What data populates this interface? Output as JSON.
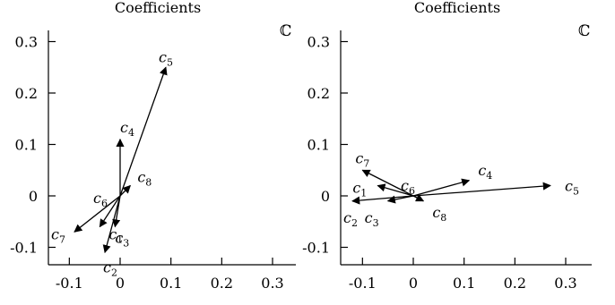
{
  "chart_data": [
    {
      "type": "vector-plot",
      "title": "Coefficients",
      "plane_symbol": "ℂ",
      "xlim": [
        -0.13,
        0.32
      ],
      "ylim": [
        -0.14,
        0.32
      ],
      "xticks": [
        "-0.1",
        "0",
        "0.1",
        "0.2",
        "0.3"
      ],
      "yticks": [
        "0.3",
        "0.2",
        "0.1",
        "0",
        "-0.1"
      ],
      "vectors": [
        {
          "base": "c",
          "sub": "1",
          "x": -0.04,
          "y": -0.06
        },
        {
          "base": "c",
          "sub": "2",
          "x": -0.03,
          "y": -0.11
        },
        {
          "base": "c",
          "sub": "3",
          "x": -0.01,
          "y": -0.06
        },
        {
          "base": "c",
          "sub": "4",
          "x": 0.0,
          "y": 0.11
        },
        {
          "base": "c",
          "sub": "5",
          "x": 0.09,
          "y": 0.25
        },
        {
          "base": "c",
          "sub": "6",
          "x": 0.0,
          "y": 0.0
        },
        {
          "base": "c",
          "sub": "7",
          "x": -0.09,
          "y": -0.07
        },
        {
          "base": "c",
          "sub": "8",
          "x": 0.02,
          "y": 0.02
        }
      ]
    },
    {
      "type": "vector-plot",
      "title": "Coefficients",
      "plane_symbol": "ℂ",
      "xlim": [
        -0.13,
        0.32
      ],
      "ylim": [
        -0.14,
        0.32
      ],
      "xticks": [
        "-0.1",
        "0",
        "0.1",
        "0.2",
        "0.3"
      ],
      "yticks": [
        "0.3",
        "0.2",
        "0.1",
        "0",
        "-0.1"
      ],
      "vectors": [
        {
          "base": "c",
          "sub": "1",
          "x": -0.07,
          "y": 0.02
        },
        {
          "base": "c",
          "sub": "2",
          "x": -0.12,
          "y": -0.01
        },
        {
          "base": "c",
          "sub": "3",
          "x": -0.05,
          "y": -0.01
        },
        {
          "base": "c",
          "sub": "4",
          "x": 0.11,
          "y": 0.03
        },
        {
          "base": "c",
          "sub": "5",
          "x": 0.27,
          "y": 0.02
        },
        {
          "base": "c",
          "sub": "6",
          "x": 0.0,
          "y": 0.0
        },
        {
          "base": "c",
          "sub": "7",
          "x": -0.1,
          "y": 0.05
        },
        {
          "base": "c",
          "sub": "8",
          "x": 0.02,
          "y": -0.01
        }
      ]
    }
  ]
}
